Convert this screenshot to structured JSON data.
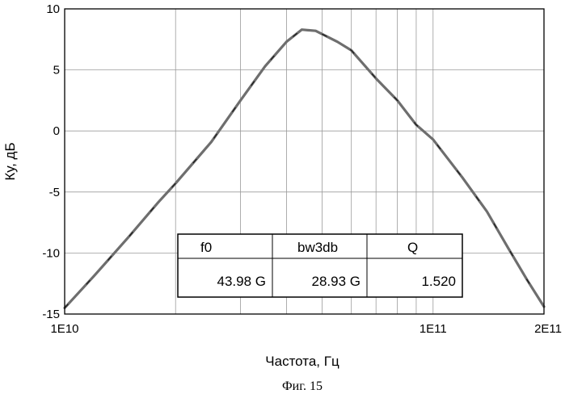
{
  "chart_data": {
    "type": "line",
    "xlabel": "Частота, Гц",
    "ylabel": "Ку, дБ",
    "x_scale": "log",
    "xlim": [
      10000000000.0,
      200000000000.0
    ],
    "ylim": [
      -15,
      10
    ],
    "x_ticks": [
      {
        "value": 10000000000.0,
        "label": "1E10"
      },
      {
        "value": 100000000000.0,
        "label": "1E11"
      },
      {
        "value": 200000000000.0,
        "label": "2E11"
      }
    ],
    "y_ticks": [
      {
        "value": 10,
        "label": "10"
      },
      {
        "value": 5,
        "label": "5"
      },
      {
        "value": 0,
        "label": "0"
      },
      {
        "value": -5,
        "label": "-5"
      },
      {
        "value": -10,
        "label": "-10"
      },
      {
        "value": -15,
        "label": "-15"
      }
    ],
    "grid": true,
    "series": [
      {
        "color": "#6e6e6e",
        "x": [
          10000000000.0,
          12000000000.0,
          15000000000.0,
          18000000000.0,
          20000000000.0,
          25000000000.0,
          30000000000.0,
          35000000000.0,
          40000000000.0,
          44000000000.0,
          48000000000.0,
          55000000000.0,
          60000000000.0,
          70000000000.0,
          80000000000.0,
          90000000000.0,
          100000000000.0,
          120000000000.0,
          140000000000.0,
          160000000000.0,
          180000000000.0,
          200000000000.0
        ],
        "y": [
          -14.5,
          -11.9,
          -8.6,
          -5.8,
          -4.3,
          -0.9,
          2.5,
          5.3,
          7.3,
          8.3,
          8.2,
          7.3,
          6.6,
          4.3,
          2.5,
          0.5,
          -0.7,
          -3.8,
          -6.6,
          -9.6,
          -12.2,
          -14.4
        ]
      }
    ],
    "table": {
      "headers": [
        "f0",
        "bw3db",
        "Q"
      ],
      "values": [
        "43.98 G",
        "28.93 G",
        "1.520"
      ]
    }
  },
  "caption": "Фиг. 15"
}
